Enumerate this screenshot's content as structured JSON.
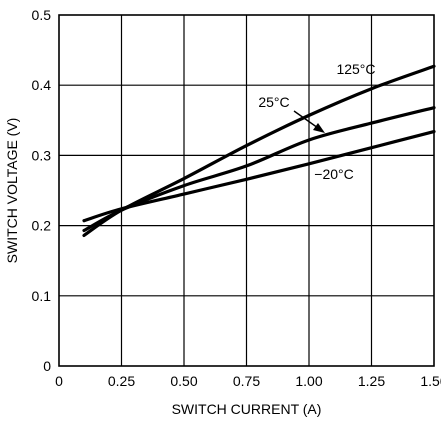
{
  "chart_data": {
    "type": "line",
    "title": "",
    "xlabel": "SWITCH CURRENT (A)",
    "ylabel": "SWITCH VOLTAGE (V)",
    "xlim": [
      0,
      1.5
    ],
    "ylim": [
      0,
      0.5
    ],
    "x_ticks": [
      0,
      0.25,
      0.5,
      0.75,
      1.0,
      1.25,
      1.5
    ],
    "x_tick_labels": [
      "0",
      "0.25",
      "0.50",
      "0.75",
      "1.00",
      "1.25",
      "1.50"
    ],
    "y_ticks": [
      0,
      0.1,
      0.2,
      0.3,
      0.4,
      0.5
    ],
    "y_tick_labels": [
      "0",
      "0.1",
      "0.2",
      "0.3",
      "0.4",
      "0.5"
    ],
    "grid": true,
    "legend": "none",
    "series": [
      {
        "name": "125°C",
        "x": [
          0.1,
          0.25,
          0.5,
          0.75,
          1.0,
          1.25,
          1.5
        ],
        "y": [
          0.186,
          0.222,
          0.267,
          0.314,
          0.357,
          0.395,
          0.427
        ]
      },
      {
        "name": "25°C",
        "x": [
          0.1,
          0.25,
          0.5,
          0.75,
          1.0,
          1.25,
          1.5
        ],
        "y": [
          0.193,
          0.222,
          0.257,
          0.285,
          0.322,
          0.346,
          0.368
        ]
      },
      {
        "name": "−20°C",
        "x": [
          0.1,
          0.25,
          0.5,
          0.75,
          1.0,
          1.25,
          1.5
        ],
        "y": [
          0.207,
          0.224,
          0.245,
          0.266,
          0.288,
          0.311,
          0.334
        ]
      }
    ],
    "annotations": [
      {
        "text": "125°C",
        "target_series": 0
      },
      {
        "text": "25°C",
        "target_series": 1
      },
      {
        "text": "−20°C",
        "target_series": 2
      }
    ]
  }
}
